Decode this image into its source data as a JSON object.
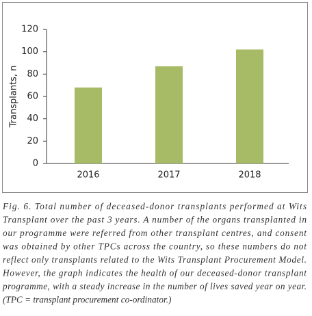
{
  "chart_data": {
    "type": "bar",
    "y_label": "Transplants, n",
    "categories": [
      "2016",
      "2017",
      "2018"
    ],
    "values": [
      68,
      87,
      102
    ],
    "color": "#a7ba66",
    "ylim": [
      0,
      120
    ],
    "yticks": [
      0,
      20,
      40,
      60,
      80,
      100,
      120
    ],
    "grid": false,
    "caption": [
      "Fig. 6. Total number of deceased-donor transplants performed at Wits",
      "Transplant over the past 3 years. A number of the organs transplanted in",
      "our programme were referred from other transplant centres, and consent",
      "was obtained by other TPCs across the country, so these numbers do not",
      "reflect only transplants related to the Wits Transplant Procurement Model.",
      "However, the graph indicates the health of our deceased-donor transplant",
      "programme, with a steady increase in the number of lives saved year on year.",
      "(TPC = transplant procurement co-ordinator.)"
    ]
  }
}
